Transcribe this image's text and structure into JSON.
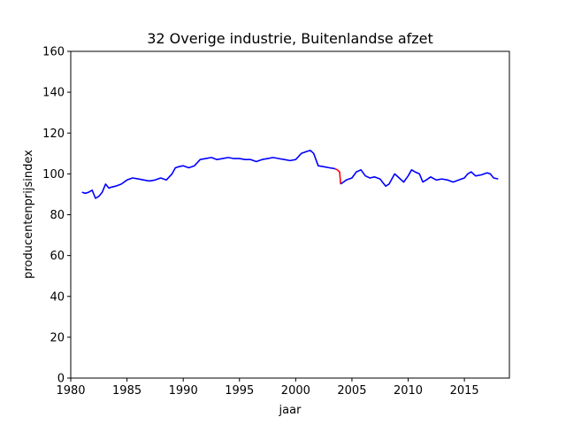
{
  "chart_data": {
    "type": "line",
    "title": "32 Overige industrie, Buitenlandse afzet",
    "xlabel": "jaar",
    "ylabel": "producentenprijsindex",
    "xlim": [
      1980,
      2019
    ],
    "ylim": [
      0,
      160
    ],
    "xticks": [
      1980,
      1985,
      1990,
      1995,
      2000,
      2005,
      2010,
      2015
    ],
    "yticks": [
      0,
      20,
      40,
      60,
      80,
      100,
      120,
      140,
      160
    ],
    "grid": false,
    "legend": "none",
    "series": [
      {
        "color": "#0000ff",
        "x": [
          1981.0,
          1981.3,
          1981.6,
          1981.9,
          1982.2,
          1982.5,
          1982.8,
          1983.1,
          1983.4,
          1983.6,
          1984.0,
          1984.5,
          1985.0,
          1985.5,
          1986.0,
          1986.5,
          1987.0,
          1987.5,
          1988.0,
          1988.5,
          1989.0,
          1989.3,
          1989.6,
          1990.0,
          1990.5,
          1991.0,
          1991.5,
          1992.0,
          1992.5,
          1993.0,
          1993.5,
          1994.0,
          1994.5,
          1995.0,
          1995.5,
          1996.0,
          1996.5,
          1997.0,
          1997.5,
          1998.0,
          1998.5,
          1999.0,
          1999.5,
          2000.0,
          2000.5,
          2001.0,
          2001.3,
          2001.6,
          2002.0,
          2002.5,
          2003.0,
          2003.5
        ],
        "y": [
          91,
          90.5,
          91,
          92,
          88,
          89,
          91,
          95,
          93,
          93.5,
          94,
          95,
          97,
          98,
          97.5,
          97,
          96.5,
          97,
          98,
          97,
          100,
          103,
          103.5,
          104,
          103,
          104,
          107,
          107.5,
          108,
          107,
          107.5,
          108,
          107.5,
          107.5,
          107,
          107,
          106,
          107,
          107.5,
          108,
          107.5,
          107,
          106.5,
          107,
          110,
          111,
          111.5,
          110,
          104,
          103.5,
          103,
          102.5
        ]
      },
      {
        "color": "#ff0000",
        "x": [
          2003.5,
          2003.7,
          2003.9,
          2004.0
        ],
        "y": [
          102.5,
          102,
          101,
          95
        ]
      },
      {
        "color": "#0000ff",
        "x": [
          2004.0,
          2004.5,
          2005.0,
          2005.4,
          2005.8,
          2006.2,
          2006.6,
          2007.0,
          2007.5,
          2008.0,
          2008.3,
          2008.8,
          2009.2,
          2009.6,
          2010.0,
          2010.3,
          2010.6,
          2011.0,
          2011.3,
          2011.6,
          2012.0,
          2012.5,
          2013.0,
          2013.5,
          2014.0,
          2014.5,
          2015.0,
          2015.3,
          2015.6,
          2016.0,
          2016.5,
          2017.0,
          2017.3,
          2017.6,
          2018.0
        ],
        "y": [
          95,
          97,
          98,
          101,
          102,
          99,
          98,
          98.5,
          97.5,
          94,
          95,
          100,
          98,
          96,
          99,
          102,
          101,
          100,
          96,
          97,
          98.5,
          97,
          97.5,
          97,
          96,
          97,
          98,
          100,
          101,
          99,
          99.5,
          100.5,
          100,
          98,
          97.5
        ]
      }
    ]
  }
}
